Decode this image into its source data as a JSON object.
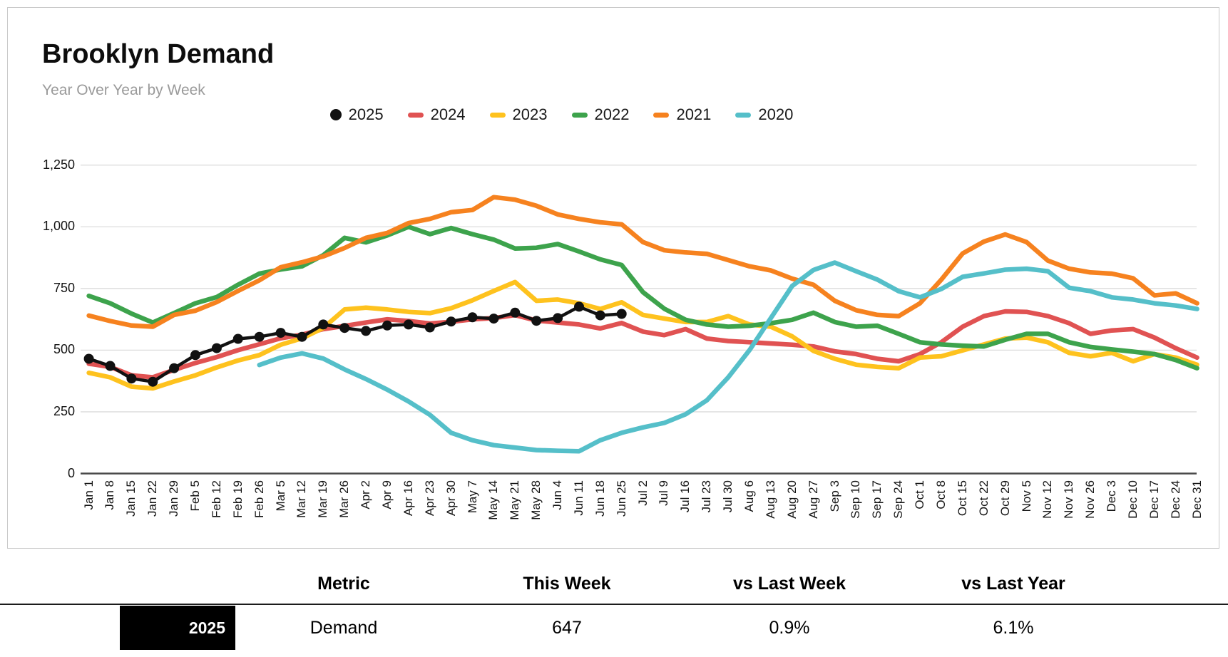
{
  "header": {
    "title": "Brooklyn Demand",
    "subtitle": "Year Over Year by Week"
  },
  "legend": [
    {
      "label": "2025",
      "color": "#111111",
      "marker": "circle"
    },
    {
      "label": "2024",
      "color": "#e05252",
      "marker": "dash"
    },
    {
      "label": "2023",
      "color": "#fec21e",
      "marker": "dash"
    },
    {
      "label": "2022",
      "color": "#3da34c",
      "marker": "dash"
    },
    {
      "label": "2021",
      "color": "#f6821f",
      "marker": "dash"
    },
    {
      "label": "2020",
      "color": "#55bfc9",
      "marker": "dash"
    }
  ],
  "chart_data": {
    "type": "line",
    "title": "Brooklyn Demand",
    "subtitle": "Year Over Year by Week",
    "ylim": [
      0,
      1250
    ],
    "yticks": [
      0,
      250,
      500,
      750,
      1000,
      1250
    ],
    "ytick_labels": [
      "0",
      "250",
      "500",
      "750",
      "1,000",
      "1,250"
    ],
    "grid": true,
    "legend_position": "top-center",
    "x": [
      "Jan 1",
      "Jan 8",
      "Jan 15",
      "Jan 22",
      "Jan 29",
      "Feb 5",
      "Feb 12",
      "Feb 19",
      "Feb 26",
      "Mar 5",
      "Mar 12",
      "Mar 19",
      "Mar 26",
      "Apr 2",
      "Apr 9",
      "Apr 16",
      "Apr 23",
      "Apr 30",
      "May 7",
      "May 14",
      "May 21",
      "May 28",
      "Jun 4",
      "Jun 11",
      "Jun 18",
      "Jun 25",
      "Jul 2",
      "Jul 9",
      "Jul 16",
      "Jul 23",
      "Jul 30",
      "Aug 6",
      "Aug 13",
      "Aug 20",
      "Aug 27",
      "Sep 3",
      "Sep 10",
      "Sep 17",
      "Sep 24",
      "Oct 1",
      "Oct 8",
      "Oct 15",
      "Oct 22",
      "Oct 29",
      "Nov 5",
      "Nov 12",
      "Nov 19",
      "Nov 26",
      "Dec 3",
      "Dec 10",
      "Dec 17",
      "Dec 24",
      "Dec 31"
    ],
    "series": [
      {
        "name": "2024",
        "color": "#e05252",
        "width": 6.5,
        "values": [
          445,
          432,
          398,
          390,
          420,
          448,
          472,
          500,
          524,
          548,
          563,
          585,
          598,
          612,
          625,
          618,
          608,
          615,
          625,
          630,
          642,
          620,
          612,
          604,
          588,
          610,
          575,
          561,
          585,
          547,
          537,
          532,
          527,
          522,
          515,
          495,
          484,
          465,
          455,
          484,
          532,
          595,
          638,
          657,
          655,
          638,
          609,
          566,
          580,
          585,
          551,
          508,
          470
        ]
      },
      {
        "name": "2023",
        "color": "#fec21e",
        "width": 6.5,
        "values": [
          408,
          390,
          352,
          345,
          373,
          398,
          430,
          458,
          480,
          522,
          548,
          590,
          665,
          672,
          665,
          655,
          650,
          670,
          702,
          740,
          776,
          700,
          705,
          690,
          667,
          694,
          643,
          628,
          614,
          614,
          638,
          604,
          595,
          556,
          497,
          465,
          441,
          432,
          427,
          470,
          475,
          499,
          523,
          547,
          551,
          532,
          489,
          475,
          489,
          455,
          484,
          470,
          441
        ]
      },
      {
        "name": "2022",
        "color": "#3da34c",
        "width": 6.5,
        "values": [
          720,
          690,
          648,
          612,
          650,
          690,
          715,
          765,
          810,
          827,
          840,
          885,
          955,
          937,
          965,
          1000,
          970,
          995,
          970,
          948,
          912,
          915,
          930,
          900,
          868,
          845,
          735,
          668,
          623,
          604,
          595,
          599,
          609,
          623,
          652,
          614,
          595,
          599,
          566,
          532,
          523,
          518,
          515,
          542,
          566,
          566,
          532,
          513,
          503,
          494,
          484,
          460,
          427
        ]
      },
      {
        "name": "2021",
        "color": "#f6821f",
        "width": 6.5,
        "values": [
          640,
          618,
          600,
          595,
          643,
          660,
          695,
          740,
          783,
          836,
          856,
          880,
          914,
          955,
          975,
          1015,
          1032,
          1059,
          1068,
          1120,
          1110,
          1085,
          1050,
          1032,
          1018,
          1010,
          938,
          905,
          896,
          890,
          865,
          840,
          823,
          790,
          765,
          700,
          662,
          643,
          638,
          690,
          786,
          892,
          940,
          969,
          938,
          863,
          830,
          815,
          810,
          791,
          722,
          730,
          690
        ]
      },
      {
        "name": "2020",
        "color": "#55bfc9",
        "width": 6.5,
        "values": [
          null,
          null,
          null,
          null,
          null,
          null,
          null,
          null,
          440,
          470,
          487,
          466,
          422,
          383,
          340,
          292,
          238,
          165,
          135,
          115,
          105,
          95,
          92,
          90,
          135,
          165,
          187,
          205,
          240,
          297,
          390,
          500,
          630,
          760,
          825,
          855,
          820,
          786,
          739,
          714,
          748,
          797,
          811,
          826,
          830,
          820,
          753,
          739,
          714,
          705,
          690,
          681,
          667
        ]
      },
      {
        "name": "2025",
        "color": "#111111",
        "width": 4.5,
        "marker": "circle",
        "marker_r": 7,
        "values": [
          465,
          436,
          385,
          372,
          427,
          480,
          508,
          546,
          554,
          570,
          554,
          604,
          590,
          578,
          600,
          604,
          592,
          616,
          633,
          628,
          652,
          619,
          630,
          676,
          641,
          647,
          null,
          null,
          null,
          null,
          null,
          null,
          null,
          null,
          null,
          null,
          null,
          null,
          null,
          null,
          null,
          null,
          null,
          null,
          null,
          null,
          null,
          null,
          null,
          null,
          null,
          null,
          null
        ]
      }
    ]
  },
  "table": {
    "columns": [
      "Metric",
      "This Week",
      "vs Last Week",
      "vs Last Year"
    ],
    "rows": [
      {
        "year": "2025",
        "metric": "Demand",
        "this_week": "647",
        "vs_last_week": "0.9%",
        "vs_last_year": "6.1%"
      }
    ]
  }
}
